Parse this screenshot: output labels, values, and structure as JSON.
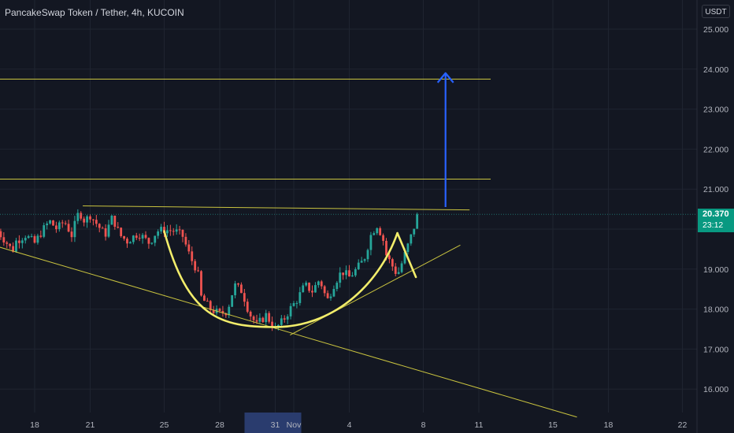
{
  "header": {
    "title": "PancakeSwap Token / Tether, 4h, KUCOIN",
    "currency": "USDT"
  },
  "price_badge": {
    "value": "20.370",
    "countdown": "23:12",
    "color": "#089981"
  },
  "colors": {
    "background": "#131722",
    "up": "#26a69a",
    "down": "#ef5350",
    "drawing": "#c9c33f",
    "pattern": "#f2ed6b",
    "arrow": "#2962ff",
    "x_highlight": "#2a3c6e"
  },
  "chart_data": {
    "type": "candlestick",
    "title": "PancakeSwap Token / Tether, 4h, KUCOIN",
    "ylabel": "USDT",
    "ylim": [
      15.4,
      25.55
    ],
    "y_ticks": [
      "16.000",
      "17.000",
      "18.000",
      "19.000",
      "20.000",
      "21.000",
      "22.000",
      "23.000",
      "24.000",
      "25.000"
    ],
    "x_ticks": [
      {
        "label": "18",
        "day": 18
      },
      {
        "label": "21",
        "day": 21
      },
      {
        "label": "25",
        "day": 25
      },
      {
        "label": "28",
        "day": 28
      },
      {
        "label": "31",
        "day": 31
      },
      {
        "label": "Nov",
        "day": 32
      },
      {
        "label": "4",
        "day": 35
      },
      {
        "label": "8",
        "day": 39
      },
      {
        "label": "11",
        "day": 42
      },
      {
        "label": "15",
        "day": 46
      },
      {
        "label": "18",
        "day": 49
      },
      {
        "label": "22",
        "day": 53
      }
    ],
    "x_highlight": {
      "label": "31"
    },
    "current_price": 20.37,
    "grid": true,
    "legend": "none",
    "price_path": [
      [
        16.0,
        19.95
      ],
      [
        16.4,
        19.72
      ],
      [
        16.8,
        19.45
      ],
      [
        17.0,
        19.7
      ],
      [
        17.5,
        19.85
      ],
      [
        18.0,
        19.65
      ],
      [
        18.4,
        19.95
      ],
      [
        18.8,
        20.2
      ],
      [
        19.2,
        20.0
      ],
      [
        19.6,
        20.2
      ],
      [
        20.0,
        19.85
      ],
      [
        20.4,
        20.45
      ],
      [
        20.7,
        20.2
      ],
      [
        21.0,
        20.35
      ],
      [
        21.4,
        20.1
      ],
      [
        21.8,
        19.85
      ],
      [
        22.2,
        20.3
      ],
      [
        22.6,
        19.85
      ],
      [
        23.0,
        19.7
      ],
      [
        23.6,
        19.9
      ],
      [
        24.2,
        19.65
      ],
      [
        24.6,
        19.95
      ],
      [
        25.0,
        19.98
      ],
      [
        25.6,
        19.95
      ],
      [
        26.0,
        19.82
      ],
      [
        26.4,
        19.3
      ],
      [
        26.8,
        18.95
      ],
      [
        27.0,
        18.3
      ],
      [
        27.5,
        18.0
      ],
      [
        28.0,
        17.88
      ],
      [
        28.4,
        17.95
      ],
      [
        28.8,
        18.6
      ],
      [
        29.2,
        18.45
      ],
      [
        29.6,
        17.9
      ],
      [
        30.0,
        17.6
      ],
      [
        30.5,
        17.85
      ],
      [
        31.0,
        17.5
      ],
      [
        31.4,
        17.7
      ],
      [
        31.8,
        18.0
      ],
      [
        32.2,
        18.25
      ],
      [
        32.6,
        18.6
      ],
      [
        33.0,
        18.45
      ],
      [
        33.4,
        18.75
      ],
      [
        33.8,
        18.2
      ],
      [
        34.2,
        18.65
      ],
      [
        34.6,
        18.95
      ],
      [
        35.0,
        18.8
      ],
      [
        35.4,
        19.0
      ],
      [
        35.8,
        19.25
      ],
      [
        36.2,
        19.9
      ],
      [
        36.5,
        20.1
      ],
      [
        36.8,
        19.8
      ],
      [
        37.0,
        19.35
      ],
      [
        37.3,
        19.1
      ],
      [
        37.6,
        18.85
      ],
      [
        37.8,
        19.1
      ],
      [
        38.1,
        19.5
      ],
      [
        38.4,
        19.9
      ],
      [
        38.7,
        20.37
      ]
    ],
    "annotations": [
      {
        "type": "horizontal-level",
        "value": 23.75
      },
      {
        "type": "horizontal-level",
        "value": 21.25
      },
      {
        "type": "resistance-line",
        "from": {
          "day": 20.6,
          "value": 20.58
        },
        "to": {
          "day": 41.5,
          "value": 20.48
        }
      },
      {
        "type": "descending-trendline",
        "from": {
          "day": 15.0,
          "value": 19.7
        },
        "to": {
          "day": 47.3,
          "value": 15.3
        }
      },
      {
        "type": "rising-trendline",
        "from": {
          "day": 31.8,
          "value": 17.35
        },
        "to": {
          "day": 41.0,
          "value": 19.6
        }
      },
      {
        "type": "cup",
        "from": {
          "day": 25.0,
          "value": 19.95
        },
        "bottom": {
          "day": 31.0,
          "value": 17.55
        },
        "to": {
          "day": 37.6,
          "value": 19.9
        }
      },
      {
        "type": "handle",
        "top": {
          "day": 37.6,
          "value": 19.9
        },
        "bottom": {
          "day": 38.6,
          "value": 18.8
        }
      },
      {
        "type": "target-arrow",
        "day": 40.2,
        "from": 20.55,
        "to": 23.9
      }
    ]
  }
}
